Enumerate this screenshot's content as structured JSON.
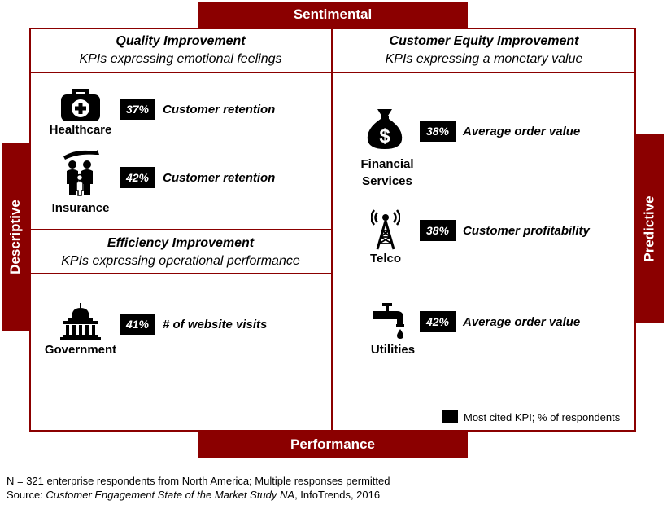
{
  "axes": {
    "top": "Sentimental",
    "bottom": "Performance",
    "left": "Descriptive",
    "right": "Predictive"
  },
  "quadrants": {
    "quality": {
      "title": "Quality Improvement",
      "subtitle": "KPIs expressing emotional feelings"
    },
    "customer_equity": {
      "title": "Customer Equity Improvement",
      "subtitle": "KPIs expressing a monetary value"
    },
    "efficiency": {
      "title": "Efficiency Improvement",
      "subtitle": "KPIs expressing operational performance"
    }
  },
  "industries": {
    "healthcare": {
      "name": "Healthcare",
      "pct": "37%",
      "kpi": "Customer retention",
      "icon": "medical-kit-icon"
    },
    "insurance": {
      "name": "Insurance",
      "pct": "42%",
      "kpi": "Customer retention",
      "icon": "family-protection-icon"
    },
    "government": {
      "name": "Government",
      "pct": "41%",
      "kpi": "# of website visits",
      "icon": "government-building-icon"
    },
    "financial": {
      "name_line1": "Financial",
      "name_line2": "Services",
      "pct": "38%",
      "kpi": "Average order value",
      "icon": "money-bag-icon"
    },
    "telco": {
      "name": "Telco",
      "pct": "38%",
      "kpi": "Customer profitability",
      "icon": "radio-tower-icon"
    },
    "utilities": {
      "name": "Utilities",
      "pct": "42%",
      "kpi": "Average order value",
      "icon": "water-tap-icon"
    }
  },
  "legend": {
    "label": "Most cited KPI; % of respondents"
  },
  "footnote": {
    "line1": "N = 321 enterprise respondents from North America; Multiple responses permitted",
    "source_prefix": "Source: ",
    "source_title": "Customer Engagement State of the Market Study NA",
    "source_suffix": ", InfoTrends, 2016"
  },
  "colors": {
    "accent": "#8b0000",
    "kpi_box": "#000000"
  }
}
